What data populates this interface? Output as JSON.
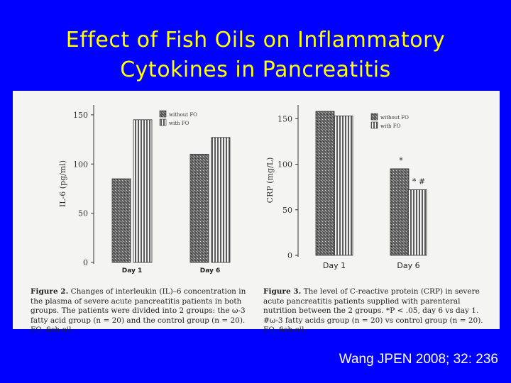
{
  "slide": {
    "title_line1": "Effect of Fish Oils on Inflammatory",
    "title_line2": "Cytokines in Pancreatitis",
    "citation": "Wang JPEN 2008; 32: 236"
  },
  "colors": {
    "background": "#0000ff",
    "title": "#ffff00",
    "citation": "#ffffff"
  },
  "figure2": {
    "caption_label": "Figure 2.",
    "caption_text": "Changes of interleukin (IL)–6 concentration in the plasma of severe acute pancreatitis patients in both groups. The patients were divided into 2 groups: the ω-3 fatty acid group (n = 20) and the control group (n = 20). FO, fish oil."
  },
  "figure3": {
    "caption_label": "Figure 3.",
    "caption_text": "The level of C-reactive protein (CRP) in severe acute pancreatitis patients supplied with parenteral nutrition between the 2 groups. *P < .05, day 6 vs day 1. #ω-3 fatty acids group (n = 20) vs control group (n = 20). FO, fish oil."
  },
  "chart_data": [
    {
      "type": "bar",
      "title": "",
      "ylabel": "IL-6 (pg/ml)",
      "xlabel": "",
      "categories": [
        "Day 1",
        "Day 6"
      ],
      "ylim": [
        0,
        160
      ],
      "yticks": [
        0,
        50,
        100,
        150
      ],
      "legend_position": "top-right",
      "series": [
        {
          "name": "without FO",
          "values": [
            85,
            110
          ],
          "pattern": "dark"
        },
        {
          "name": "with FO",
          "values": [
            145,
            127
          ],
          "pattern": "stripe"
        }
      ],
      "annotations": []
    },
    {
      "type": "bar",
      "title": "",
      "ylabel": "CRP (mg/L)",
      "xlabel": "",
      "categories": [
        "Day 1",
        "Day 6"
      ],
      "ylim": [
        0,
        165
      ],
      "yticks": [
        0,
        50,
        100,
        150
      ],
      "legend_position": "top-right",
      "series": [
        {
          "name": "without FO",
          "values": [
            158,
            95
          ],
          "pattern": "dark",
          "labels": [
            "",
            "*"
          ]
        },
        {
          "name": "with FO",
          "values": [
            153,
            72
          ],
          "pattern": "stripe",
          "labels": [
            "",
            "* #"
          ]
        }
      ]
    }
  ]
}
